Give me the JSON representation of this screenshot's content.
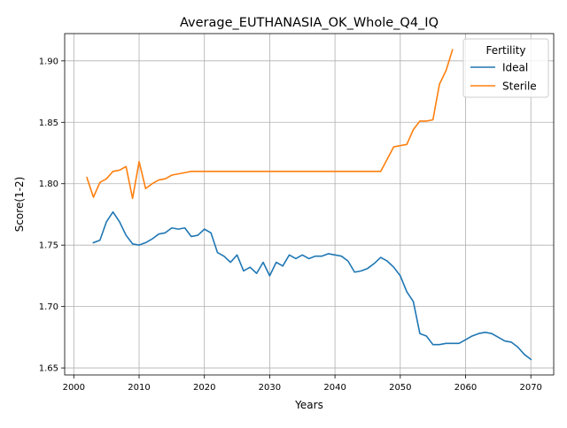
{
  "chart_data": {
    "type": "line",
    "title": "Average_EUTHANASIA_OK_Whole_Q4_IQ",
    "xlabel": "Years",
    "ylabel": "Score(1-2)",
    "xlim": [
      1998.6,
      2073.5
    ],
    "ylim": [
      1.6443,
      1.9222
    ],
    "xticks": [
      2000,
      2010,
      2020,
      2030,
      2040,
      2050,
      2060,
      2070
    ],
    "yticks": [
      1.65,
      1.7,
      1.75,
      1.8,
      1.85,
      1.9
    ],
    "ytick_labels": [
      "1.65",
      "1.70",
      "1.75",
      "1.80",
      "1.85",
      "1.90"
    ],
    "grid": true,
    "legend": {
      "title": "Fertility",
      "placement": "top-right"
    },
    "series": [
      {
        "name": "Ideal",
        "color": "#1f77b4",
        "x": [
          2003,
          2004,
          2005,
          2006,
          2007,
          2008,
          2009,
          2010,
          2011,
          2012,
          2013,
          2014,
          2015,
          2016,
          2017,
          2018,
          2019,
          2020,
          2021,
          2022,
          2023,
          2024,
          2025,
          2026,
          2027,
          2028,
          2029,
          2030,
          2031,
          2032,
          2033,
          2034,
          2035,
          2036,
          2037,
          2038,
          2039,
          2040,
          2041,
          2042,
          2043,
          2044,
          2045,
          2046,
          2047,
          2048,
          2049,
          2050,
          2051,
          2052,
          2053,
          2054,
          2055,
          2056,
          2057,
          2058,
          2059,
          2060,
          2061,
          2062,
          2063,
          2064,
          2065,
          2066,
          2067,
          2068,
          2069,
          2070
        ],
        "values": [
          1.752,
          1.754,
          1.769,
          1.777,
          1.769,
          1.758,
          1.751,
          1.75,
          1.752,
          1.755,
          1.759,
          1.76,
          1.764,
          1.763,
          1.764,
          1.757,
          1.758,
          1.763,
          1.76,
          1.744,
          1.741,
          1.736,
          1.742,
          1.729,
          1.732,
          1.727,
          1.736,
          1.725,
          1.736,
          1.733,
          1.742,
          1.739,
          1.742,
          1.739,
          1.741,
          1.741,
          1.743,
          1.742,
          1.741,
          1.737,
          1.728,
          1.729,
          1.731,
          1.735,
          1.74,
          1.737,
          1.732,
          1.725,
          1.712,
          1.704,
          1.678,
          1.676,
          1.669,
          1.669,
          1.67,
          1.67,
          1.67,
          1.673,
          1.676,
          1.678,
          1.679,
          1.678,
          1.675,
          1.672,
          1.671,
          1.667,
          1.661,
          1.657
        ]
      },
      {
        "name": "Sterile",
        "color": "#ff7f0e",
        "x": [
          2002,
          2003,
          2004,
          2005,
          2006,
          2007,
          2008,
          2009,
          2010,
          2011,
          2012,
          2013,
          2014,
          2015,
          2016,
          2017,
          2018,
          2019,
          2020,
          2021,
          2022,
          2023,
          2024,
          2025,
          2026,
          2027,
          2028,
          2029,
          2030,
          2031,
          2032,
          2033,
          2034,
          2035,
          2036,
          2037,
          2038,
          2039,
          2040,
          2041,
          2042,
          2043,
          2044,
          2045,
          2046,
          2047,
          2048,
          2049,
          2050,
          2051,
          2052,
          2053,
          2054,
          2055,
          2056,
          2057,
          2058
        ],
        "values": [
          1.805,
          1.789,
          1.801,
          1.804,
          1.81,
          1.811,
          1.814,
          1.788,
          1.818,
          1.796,
          1.8,
          1.803,
          1.804,
          1.807,
          1.808,
          1.809,
          1.81,
          1.81,
          1.81,
          1.81,
          1.81,
          1.81,
          1.81,
          1.81,
          1.81,
          1.81,
          1.81,
          1.81,
          1.81,
          1.81,
          1.81,
          1.81,
          1.81,
          1.81,
          1.81,
          1.81,
          1.81,
          1.81,
          1.81,
          1.81,
          1.81,
          1.81,
          1.81,
          1.81,
          1.81,
          1.81,
          1.82,
          1.83,
          1.831,
          1.832,
          1.844,
          1.851,
          1.851,
          1.852,
          1.881,
          1.892,
          1.909
        ]
      }
    ]
  }
}
